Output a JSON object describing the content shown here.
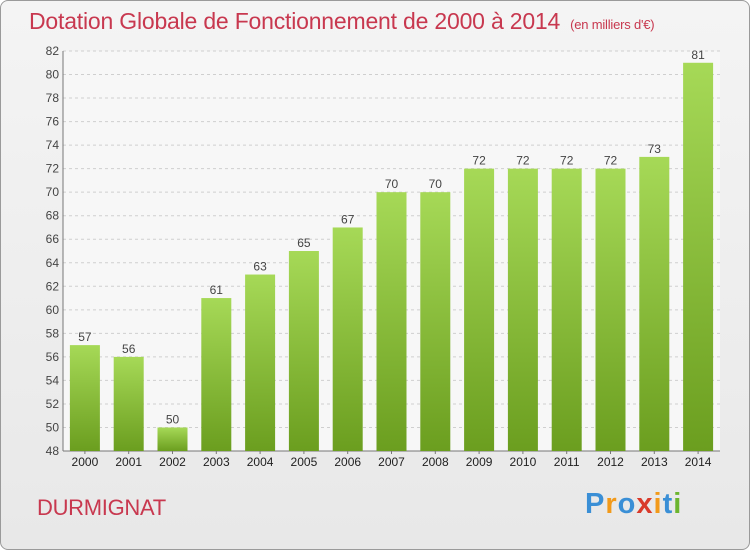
{
  "chart_data": {
    "type": "bar",
    "title": "Dotation Globale de Fonctionnement de 2000 à 2014",
    "subtitle": "(en milliers d'€)",
    "categories": [
      "2000",
      "2001",
      "2002",
      "2003",
      "2004",
      "2005",
      "2006",
      "2007",
      "2008",
      "2009",
      "2010",
      "2011",
      "2012",
      "2013",
      "2014"
    ],
    "values": [
      57,
      56,
      50,
      61,
      63,
      65,
      67,
      70,
      70,
      72,
      72,
      72,
      72,
      73,
      81
    ],
    "ylim": [
      48,
      82
    ],
    "yticks": [
      48,
      50,
      52,
      54,
      56,
      58,
      60,
      62,
      64,
      66,
      68,
      70,
      72,
      74,
      76,
      78,
      80,
      82
    ],
    "grid": true,
    "colors": {
      "bar_top": "#a6d957",
      "bar_bottom": "#6b9e1f",
      "title": "#c8384f"
    }
  },
  "commune": "DURMIGNAT",
  "brand": {
    "letters": [
      "P",
      "r",
      "o",
      "x",
      "i",
      "t",
      "i"
    ],
    "colors": [
      "#3a8fd6",
      "#f29a1a",
      "#3a8fd6",
      "#d93a2b",
      "#f29a1a",
      "#3a8fd6",
      "#6cb52e"
    ]
  }
}
